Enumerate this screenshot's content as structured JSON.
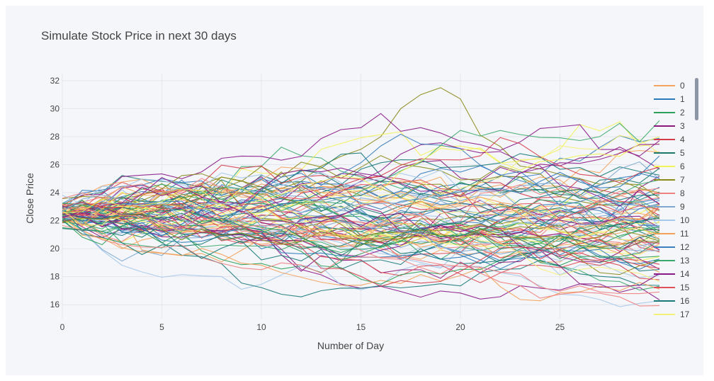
{
  "chart_data": {
    "type": "line",
    "title": "Simulate Stock Price in next 30 days",
    "xlabel": "Number of Day",
    "ylabel": "Close Price",
    "xlim": [
      0,
      30
    ],
    "ylim": [
      15,
      32.5
    ],
    "x_ticks": [
      0,
      5,
      10,
      15,
      20,
      25
    ],
    "y_ticks": [
      16,
      18,
      20,
      22,
      24,
      26,
      28,
      30,
      32
    ],
    "grid": true,
    "legend_position": "right",
    "legend_entries": [
      "0",
      "1",
      "2",
      "3",
      "4",
      "5",
      "6",
      "7",
      "8",
      "9",
      "10",
      "11",
      "12",
      "13",
      "14",
      "15",
      "16",
      "17"
    ],
    "palette": [
      "#f5a55f",
      "#2b7ab8",
      "#2ca05a",
      "#8b1a7c",
      "#d43c4a",
      "#1a7a6e",
      "#f2f25a",
      "#8a8a1a",
      "#f08080",
      "#7ea8cf",
      "#a6c8ea",
      "#f2a15a",
      "#3b7fbf",
      "#3aa86b",
      "#8a1a8a",
      "#e0505a",
      "#1a7a7a",
      "#f5f07a"
    ],
    "series_count": 100,
    "steps": 30,
    "start_price": 22.5,
    "highlight_series": {
      "index": 7,
      "x": [
        0,
        1,
        2,
        3,
        4,
        5,
        6,
        7,
        8,
        9,
        10,
        11,
        12,
        13,
        14,
        15,
        16,
        17,
        18,
        19,
        20,
        21,
        22,
        23,
        24,
        25,
        26,
        27,
        28,
        29,
        30
      ],
      "values": [
        22.6,
        22.9,
        23.3,
        23.1,
        23.4,
        22.8,
        23.6,
        23.2,
        23.7,
        24.0,
        23.9,
        24.3,
        24.8,
        25.9,
        26.6,
        27.1,
        28.0,
        30.0,
        31.0,
        31.5,
        30.7,
        28.1,
        27.3,
        25.9,
        25.7,
        25.3,
        25.0,
        24.6,
        24.9,
        24.3,
        24.0
      ]
    }
  }
}
